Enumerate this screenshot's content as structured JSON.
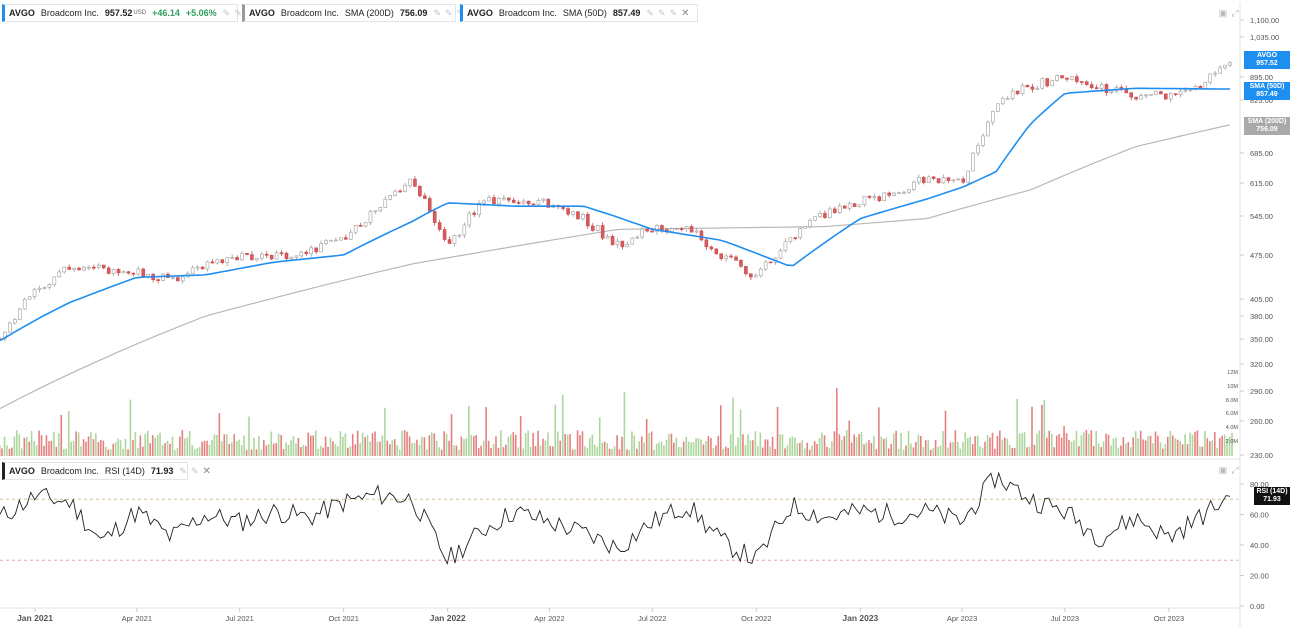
{
  "legends": {
    "price": {
      "symbol": "AVGO",
      "name": "Broadcom Inc.",
      "value": "957.52",
      "unit": "USD",
      "change": "+46.14",
      "change_pct": "+5.06%"
    },
    "sma200": {
      "symbol": "AVGO",
      "name": "Broadcom Inc.",
      "label": "SMA (200D)",
      "value": "756.09"
    },
    "sma50": {
      "symbol": "AVGO",
      "name": "Broadcom Inc.",
      "label": "SMA (50D)",
      "value": "857.49"
    },
    "rsi": {
      "symbol": "AVGO",
      "name": "Broadcom Inc.",
      "label": "RSI (14D)",
      "value": "71.93"
    }
  },
  "colors": {
    "accent": "#1f8ef1",
    "sma200": "#b8b8b8",
    "up": "#9fcf8c",
    "down": "#e26a6a",
    "rsi_line": "#222222",
    "over": "#d6c08a",
    "under": "#e9a0a0"
  },
  "icons": [
    "settings-icon",
    "visibility-icon",
    "more-icon",
    "close-icon",
    "add-icon",
    "fullscreen-icon"
  ],
  "chart_data": [
    {
      "type": "candlestick",
      "title": "AVGO Broadcom Inc.",
      "x_ticks": [
        "Jan 2021",
        "Apr 2021",
        "Jul 2021",
        "Oct 2021",
        "Jan 2022",
        "Apr 2022",
        "Jul 2022",
        "Oct 2022",
        "Jan 2023",
        "Apr 2023",
        "Jul 2023",
        "Oct 2023"
      ],
      "y_ticks": [
        "1,100.00",
        "1,035.00",
        "895.00",
        "825.00",
        "685.00",
        "615.00",
        "545.00",
        "475.00",
        "405.00",
        "380.00",
        "350.00",
        "320.00",
        "290.00",
        "260.00",
        "230.00"
      ],
      "y_scale": "log",
      "series": [
        {
          "name": "AVGO",
          "x": [
            "2020-12-01",
            "2021-01-01",
            "2021-02-01",
            "2021-03-01",
            "2021-04-01",
            "2021-05-01",
            "2021-06-01",
            "2021-07-01",
            "2021-08-01",
            "2021-09-01",
            "2021-10-01",
            "2021-11-01",
            "2021-12-01",
            "2022-01-01",
            "2022-02-01",
            "2022-03-01",
            "2022-04-01",
            "2022-05-01",
            "2022-06-01",
            "2022-07-01",
            "2022-08-01",
            "2022-09-01",
            "2022-10-01",
            "2022-11-01",
            "2022-12-01",
            "2023-01-01",
            "2023-02-01",
            "2023-03-01",
            "2023-04-01",
            "2023-05-01",
            "2023-06-01",
            "2023-07-01",
            "2023-08-01",
            "2023-09-01",
            "2023-10-01",
            "2023-11-01",
            "2023-11-24"
          ],
          "values": [
            350,
            420,
            455,
            450,
            445,
            435,
            460,
            470,
            470,
            485,
            505,
            560,
            625,
            490,
            575,
            575,
            570,
            540,
            490,
            525,
            520,
            475,
            440,
            505,
            550,
            575,
            595,
            630,
            615,
            810,
            870,
            890,
            860,
            840,
            835,
            870,
            957.52
          ]
        },
        {
          "name": "SMA (50D)",
          "x": [
            "2020-12-01",
            "2021-02-01",
            "2021-04-01",
            "2021-06-01",
            "2021-08-01",
            "2021-10-01",
            "2021-12-01",
            "2022-01-01",
            "2022-03-01",
            "2022-05-01",
            "2022-07-01",
            "2022-09-01",
            "2022-11-01",
            "2023-01-01",
            "2023-03-01",
            "2023-04-01",
            "2023-05-01",
            "2023-06-01",
            "2023-07-01",
            "2023-09-01",
            "2023-11-24"
          ],
          "values": [
            348,
            400,
            438,
            442,
            463,
            475,
            535,
            572,
            565,
            565,
            520,
            500,
            455,
            540,
            580,
            605,
            640,
            760,
            845,
            860,
            857.49
          ]
        },
        {
          "name": "SMA (200D)",
          "x": [
            "2020-12-01",
            "2021-06-01",
            "2021-12-01",
            "2022-06-01",
            "2022-12-01",
            "2023-03-01",
            "2023-06-01",
            "2023-09-01",
            "2023-11-24"
          ],
          "values": [
            272,
            380,
            460,
            520,
            525,
            540,
            600,
            700,
            756.09
          ]
        }
      ],
      "volume_ticks": [
        "12M",
        "10M",
        "8.0M",
        "6.0M",
        "4.0M",
        "2.0M"
      ]
    },
    {
      "type": "line",
      "title": "AVGO Broadcom Inc. RSI (14D)",
      "y_ticks": [
        "80.00",
        "60.00",
        "40.00",
        "20.00",
        "0.00"
      ],
      "ylim": [
        0,
        100
      ],
      "overbought": 70,
      "oversold": 30,
      "series": [
        {
          "name": "RSI (14D)",
          "x": [
            "2020-12-01",
            "2021-01-01",
            "2021-02-01",
            "2021-03-01",
            "2021-04-01",
            "2021-05-01",
            "2021-06-01",
            "2021-07-01",
            "2021-08-01",
            "2021-09-01",
            "2021-10-01",
            "2021-11-01",
            "2021-12-01",
            "2022-01-01",
            "2022-02-01",
            "2022-03-01",
            "2022-04-01",
            "2022-05-01",
            "2022-06-01",
            "2022-07-01",
            "2022-08-01",
            "2022-09-01",
            "2022-10-01",
            "2022-11-01",
            "2022-12-01",
            "2023-01-01",
            "2023-02-01",
            "2023-03-01",
            "2023-04-01",
            "2023-05-01",
            "2023-06-01",
            "2023-07-01",
            "2023-08-01",
            "2023-09-01",
            "2023-10-01",
            "2023-11-01",
            "2023-11-24"
          ],
          "values": [
            58,
            72,
            68,
            42,
            62,
            45,
            60,
            55,
            62,
            58,
            68,
            73,
            70,
            30,
            50,
            62,
            55,
            48,
            38,
            55,
            66,
            42,
            30,
            66,
            58,
            62,
            60,
            62,
            55,
            85,
            70,
            62,
            45,
            58,
            45,
            60,
            71.93
          ]
        }
      ],
      "x_ticks": [
        "Jan 2021",
        "Apr 2021",
        "Jul 2021",
        "Oct 2021",
        "Jan 2022",
        "Apr 2022",
        "Jul 2022",
        "Oct 2022",
        "Jan 2023",
        "Apr 2023",
        "Jul 2023",
        "Oct 2023"
      ]
    }
  ],
  "labels": {
    "price_tag": {
      "name": "AVGO",
      "value": "957.52"
    },
    "sma50_tag": {
      "name": "SMA (50D)",
      "value": "857.49"
    },
    "sma200_tag": {
      "name": "SMA (200D)",
      "value": "756.09"
    },
    "rsi_tag": {
      "name": "RSI (14D)",
      "value": "71.93"
    }
  }
}
